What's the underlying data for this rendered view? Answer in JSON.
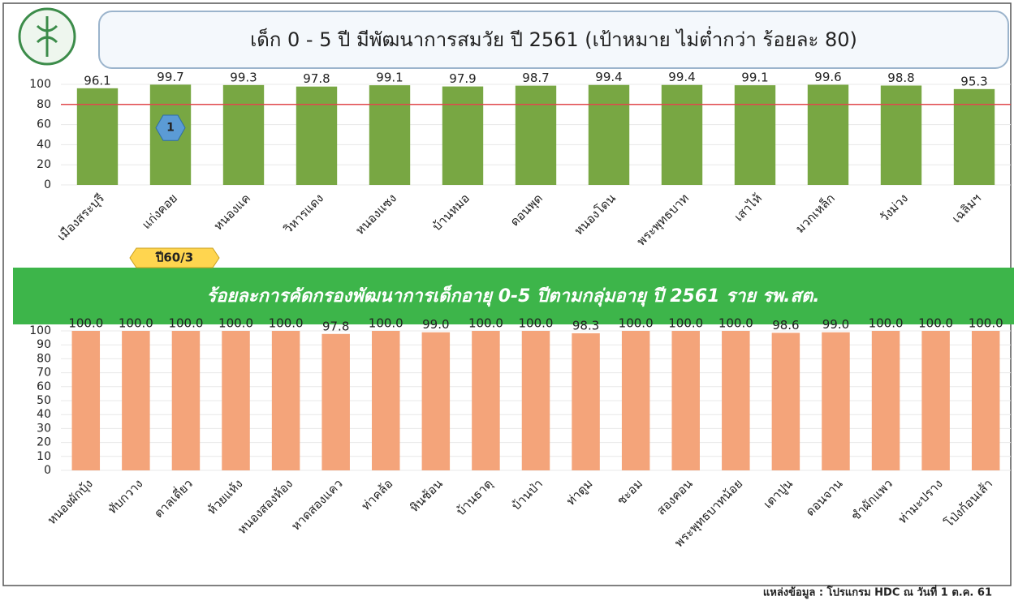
{
  "chart_data": [
    {
      "type": "bar",
      "title": "เด็ก 0 - 5 ปี มีพัฒนาการสมวัย ปี 2561 (เป้าหมาย ไม่ต่ำกว่า ร้อยละ 80)",
      "categories": [
        "เมืองสระบุรี",
        "แก่งคอย",
        "หนองแค",
        "วิหารแดง",
        "หนองแซง",
        "บ้านหมอ",
        "ดอนพุด",
        "หนองโดน",
        "พระพุทธบาท",
        "เสาไห้",
        "มวกเหล็ก",
        "วังม่วง",
        "เฉลิมฯ"
      ],
      "values": [
        96.1,
        99.7,
        99.3,
        97.8,
        99.1,
        97.9,
        98.7,
        99.4,
        99.4,
        99.1,
        99.6,
        98.8,
        95.3
      ],
      "color": "#78a743",
      "target_line": 80,
      "target_color": "#e0474c",
      "ylim": [
        0,
        100
      ],
      "yticks": [
        0,
        20,
        40,
        60,
        80,
        100
      ]
    },
    {
      "type": "bar",
      "title": "ร้อยละการคัดกรองพัฒนาการเด็กอายุ 0-5 ปีตามกลุ่มอายุ  ปี 2561 ราย รพ.สต.",
      "categories": [
        "หนองผักบุ้ง",
        "ทับกวาง",
        "ตาลเดี่ยว",
        "ห้วยแห้ง",
        "หนองสองห้อง",
        "หาดสองแคว",
        "ท่าคล้อ",
        "หินซ้อน",
        "บ้านธาตุ",
        "บ้านป่า",
        "ท่าตูม",
        "ชะอม",
        "สองคอน",
        "พระพุทธบาทน้อย",
        "เตาปูน",
        "ดอนจาน",
        "ชำผักแพว",
        "ท่ามะปราง",
        "โป่งก้อนเส้า"
      ],
      "values": [
        100,
        100,
        100,
        100,
        100,
        97.8,
        100,
        99,
        100,
        100,
        98.3,
        100,
        100,
        100,
        98.6,
        99,
        100,
        100,
        100
      ],
      "value_labels": [
        "100.0",
        "100.0",
        "100.0",
        "100.0",
        "100.0",
        "97.8",
        "100.0",
        "99.0",
        "100.0",
        "100.0",
        "98.3",
        "100.0",
        "100.0",
        "100.0",
        "98.6",
        "99.0",
        "100.0",
        "100.0",
        "100.0"
      ],
      "color": "#f4a47a",
      "ylim": [
        0,
        100
      ],
      "yticks": [
        0,
        10,
        20,
        30,
        40,
        50,
        60,
        70,
        80,
        90,
        100
      ]
    }
  ],
  "badge": "1",
  "tag": "ปี60/3",
  "source": "แหล่งข้อมูล : โปรแกรม HDC ณ วันที่ 1 ต.ค. 61"
}
